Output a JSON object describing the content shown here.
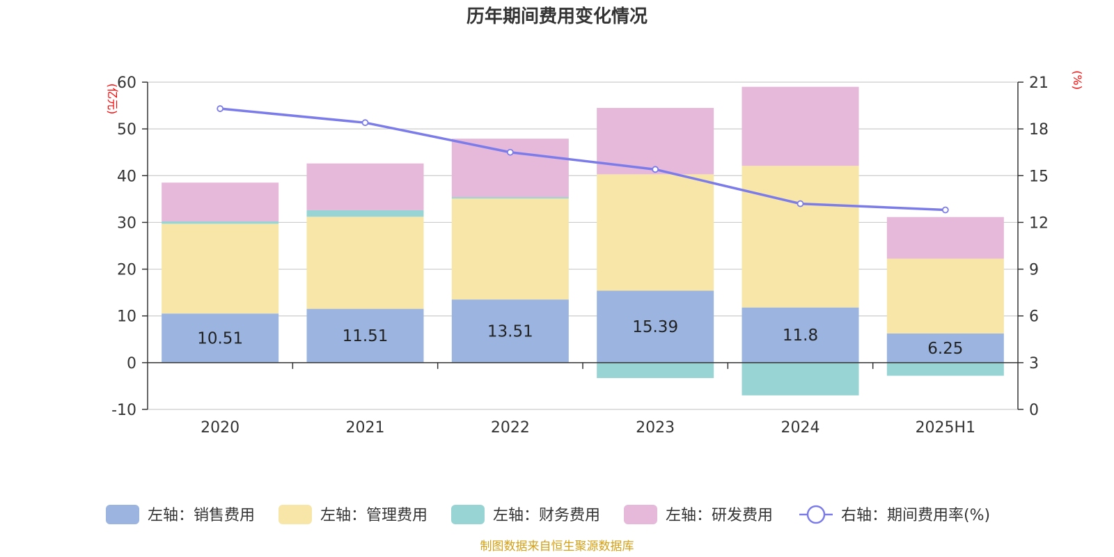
{
  "chart_data": {
    "type": "bar",
    "title": "历年期间费用变化情况",
    "categories": [
      "2020",
      "2021",
      "2022",
      "2023",
      "2024",
      "2025H1"
    ],
    "left_axis": {
      "unit": "(亿元)",
      "ticks": [
        60,
        50,
        40,
        30,
        20,
        10,
        0,
        -10
      ],
      "ylim": [
        -10,
        60
      ]
    },
    "right_axis": {
      "unit": "(%)",
      "ticks": [
        21,
        18,
        15,
        12,
        9,
        6,
        3,
        0
      ],
      "ylim": [
        0,
        21
      ]
    },
    "series": [
      {
        "name": "左轴：销售费用",
        "type": "bar",
        "stack": true,
        "axis": "left",
        "values": [
          10.51,
          11.51,
          13.51,
          15.39,
          11.8,
          6.25
        ],
        "labels": [
          "10.51",
          "11.51",
          "13.51",
          "15.39",
          "11.8",
          "6.25"
        ]
      },
      {
        "name": "左轴：管理费用",
        "type": "bar",
        "stack": true,
        "axis": "left",
        "values": [
          19.2,
          19.7,
          21.6,
          24.9,
          30.3,
          16.0
        ]
      },
      {
        "name": "左轴：财务费用",
        "type": "bar",
        "stack": true,
        "axis": "left",
        "values": [
          0.5,
          1.4,
          0.3,
          -3.3,
          -7.0,
          -2.8
        ]
      },
      {
        "name": "左轴：研发费用",
        "type": "bar",
        "stack": true,
        "axis": "left",
        "values": [
          8.3,
          10.0,
          12.5,
          14.2,
          16.9,
          8.9
        ]
      },
      {
        "name": "右轴：期间费用率(%)",
        "type": "line",
        "axis": "right",
        "values": [
          19.3,
          18.4,
          16.5,
          15.4,
          13.2,
          12.8
        ]
      }
    ],
    "colors": [
      "#9bb5e0",
      "#f7e6a8",
      "#98d4d4",
      "#e6b8d9",
      "#7b7cea"
    ],
    "legend_position": "bottom",
    "grid": true
  },
  "source": "制图数据来自恒生聚源数据库",
  "colors": {
    "unit": "#ff0000",
    "source": "#d4a017"
  }
}
